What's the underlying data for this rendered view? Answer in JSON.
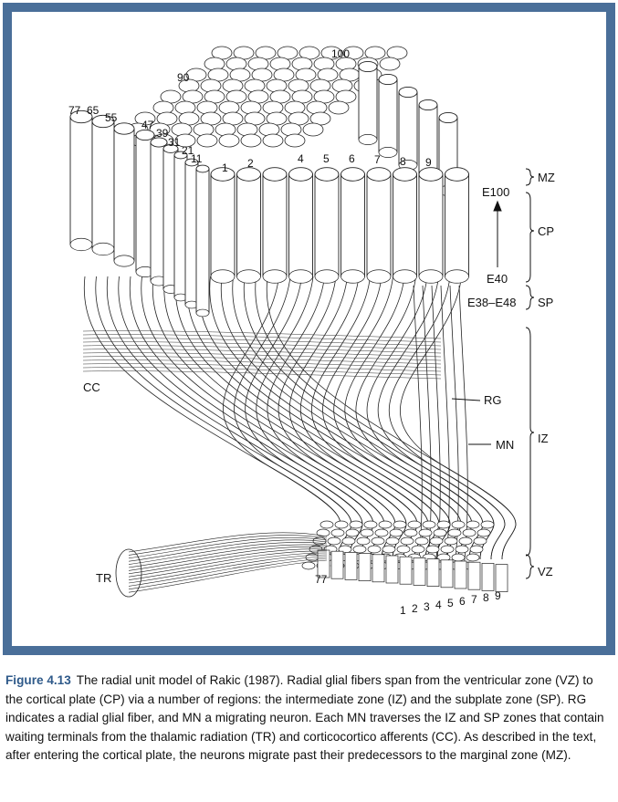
{
  "figure": {
    "column_numbers_front": [
      "1",
      "2",
      "4",
      "5",
      "6",
      "7",
      "8",
      "9"
    ],
    "column_numbers_back": [
      "77",
      "65",
      "55",
      "47",
      "39",
      "31",
      "21",
      "11",
      "90",
      "100"
    ],
    "vz_numbers": [
      "1",
      "2",
      "3",
      "4",
      "5",
      "6",
      "7",
      "8",
      "9"
    ],
    "vz_77": "77",
    "zones": {
      "mz": "MZ",
      "cp": "CP",
      "sp": "SP",
      "iz": "IZ",
      "vz": "VZ"
    },
    "timeline": {
      "e100": "E100",
      "e40": "E40",
      "e38_e48": "E38–E48"
    },
    "labels": {
      "cc": "CC",
      "tr": "TR",
      "rg": "RG",
      "mn": "MN"
    }
  },
  "caption": {
    "label": "Figure 4.13",
    "text": "The radial unit model of Rakic (1987). Radial glial fibers span from the ventricular zone (VZ) to the cortical plate (CP) via a number of regions: the intermediate zone (IZ) and the subplate zone (SP). RG indicates a radial glial fiber, and MN a migrating neuron. Each MN traverses the IZ and SP zones that contain waiting terminals from the thalamic radiation (TR) and corticocortico afferents (CC). As described in the text, after entering the cortical plate, the neurons migrate past their predecessors to the marginal zone (MZ)."
  }
}
